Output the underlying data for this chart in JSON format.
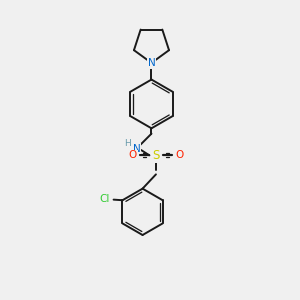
{
  "background_color": "#f0f0f0",
  "bond_color": "#1a1a1a",
  "atom_colors": {
    "N_pyrroli": "#0066cc",
    "N_amine": "#0066cc",
    "S": "#cccc00",
    "O": "#ff2200",
    "Cl": "#33cc33",
    "H": "#6699aa",
    "C": "#1a1a1a"
  },
  "figsize": [
    3.0,
    3.0
  ],
  "dpi": 100
}
